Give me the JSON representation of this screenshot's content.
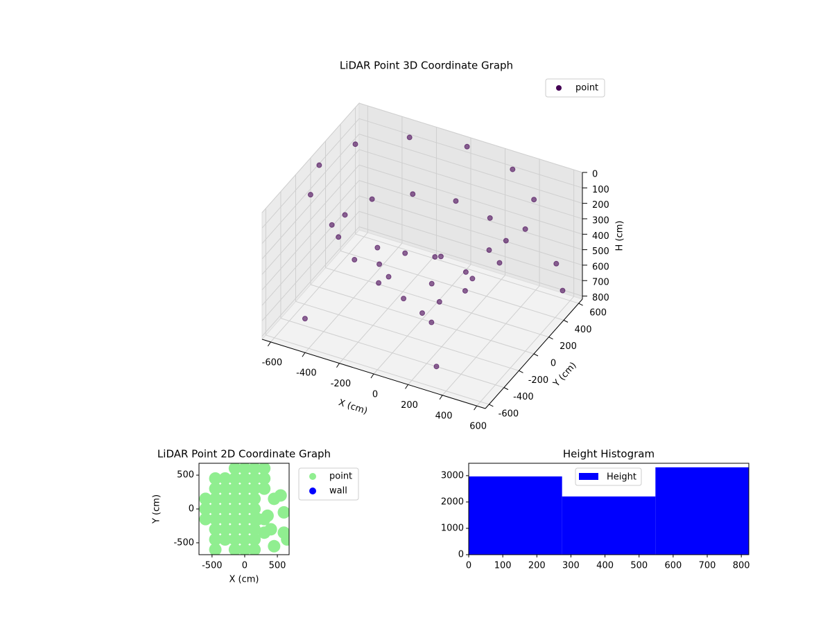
{
  "chart_data": [
    {
      "type": "scatter3d",
      "title": "LiDAR Point 3D Coordinate Graph",
      "xlabel": "X (cm)",
      "ylabel": "Y (cm)",
      "zlabel": "H (cm)",
      "xlim": [
        -650,
        650
      ],
      "ylim": [
        -650,
        650
      ],
      "zlim": [
        0,
        820
      ],
      "z_inverted": true,
      "xticks": [
        -600,
        -400,
        -200,
        0,
        200,
        400,
        600
      ],
      "yticks": [
        -600,
        -400,
        -200,
        0,
        200,
        400,
        600
      ],
      "zticks": [
        0,
        100,
        200,
        300,
        400,
        500,
        600,
        700,
        800
      ],
      "grid": true,
      "legend": "upper right",
      "series": [
        {
          "name": "point",
          "color": "#440154",
          "x": [
            600,
            520,
            300,
            0,
            -300,
            -520,
            -600,
            -520,
            -300,
            0,
            300,
            520,
            450,
            390,
            225,
            0,
            -225,
            -390,
            -450,
            -390,
            -225,
            0,
            225,
            390,
            250,
            177,
            0,
            -177,
            -250,
            -177,
            0,
            177,
            0,
            80,
            600,
            -400,
            300,
            650
          ],
          "y": [
            0,
            300,
            520,
            600,
            520,
            300,
            0,
            -300,
            -520,
            -600,
            -520,
            -300,
            0,
            225,
            390,
            450,
            390,
            225,
            0,
            -225,
            -390,
            -450,
            -390,
            -225,
            0,
            177,
            250,
            177,
            0,
            -177,
            -250,
            -177,
            0,
            -60,
            500,
            -650,
            -500,
            300
          ],
          "z": [
            30,
            30,
            30,
            30,
            30,
            30,
            30,
            30,
            30,
            30,
            30,
            30,
            300,
            300,
            300,
            300,
            300,
            300,
            300,
            300,
            300,
            300,
            300,
            300,
            550,
            550,
            550,
            550,
            550,
            550,
            550,
            550,
            780,
            780,
            700,
            600,
            750,
            400
          ]
        }
      ]
    },
    {
      "type": "scatter",
      "title": "LiDAR Point 2D Coordinate Graph",
      "xlabel": "X (cm)",
      "ylabel": "Y (cm)",
      "xlim": [
        -700,
        680
      ],
      "ylim": [
        -675,
        675
      ],
      "xticks": [
        -500,
        0,
        500
      ],
      "yticks": [
        -500,
        0,
        500
      ],
      "legend": "outside right",
      "series": [
        {
          "name": "point",
          "color": "#90ee90",
          "x": [
            -600,
            -600,
            -600,
            -450,
            -450,
            -450,
            -450,
            -450,
            -450,
            -450,
            -300,
            -300,
            -300,
            -300,
            -300,
            -300,
            -300,
            -150,
            -150,
            -150,
            -150,
            -150,
            -150,
            -150,
            -150,
            -150,
            0,
            0,
            0,
            0,
            0,
            0,
            0,
            0,
            0,
            150,
            150,
            150,
            150,
            150,
            150,
            150,
            150,
            150,
            300,
            300,
            300,
            450,
            550,
            200,
            300,
            350,
            400,
            300,
            600,
            650,
            450,
            -450,
            600
          ],
          "y": [
            -150,
            0,
            150,
            -450,
            -300,
            -150,
            0,
            150,
            300,
            450,
            -450,
            -300,
            -150,
            0,
            150,
            300,
            450,
            -600,
            -450,
            -300,
            -150,
            0,
            150,
            300,
            450,
            600,
            -600,
            -450,
            -300,
            -150,
            0,
            150,
            300,
            450,
            600,
            -600,
            -450,
            -300,
            -150,
            0,
            150,
            300,
            450,
            600,
            300,
            450,
            600,
            150,
            200,
            -150,
            -150,
            -100,
            -300,
            -350,
            -350,
            -450,
            -550,
            -600,
            -50
          ]
        },
        {
          "name": "wall",
          "color": "#0000ff",
          "x": [],
          "y": []
        }
      ]
    },
    {
      "type": "histogram",
      "title": "Height Histogram",
      "bins": [
        0,
        274,
        548,
        822
      ],
      "counts": [
        2970,
        2210,
        3316
      ],
      "color": "#0000ff",
      "series_name": "Height",
      "legend": "upper center",
      "xlim": [
        0,
        822
      ],
      "ylim": [
        0,
        3470
      ],
      "xticks": [
        0,
        100,
        200,
        300,
        400,
        500,
        600,
        700,
        800
      ],
      "yticks": [
        0,
        1000,
        2000,
        3000
      ]
    }
  ]
}
